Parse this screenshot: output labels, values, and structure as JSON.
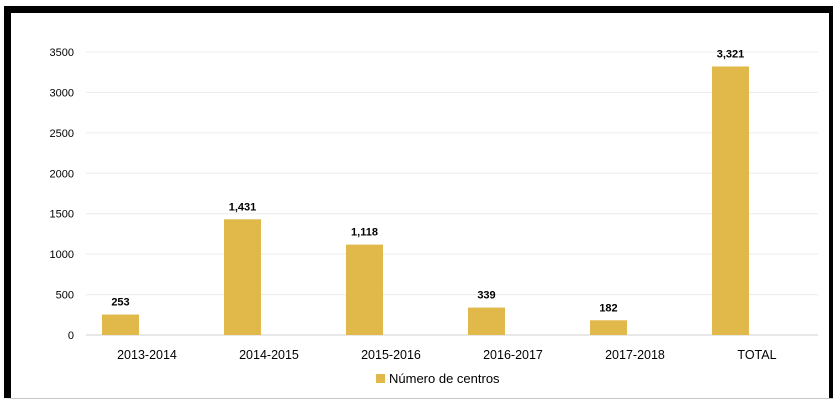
{
  "chart_data": {
    "type": "bar",
    "categories": [
      "2013-2014",
      "2014-2015",
      "2015-2016",
      "2016-2017",
      "2017-2018",
      "TOTAL"
    ],
    "series": [
      {
        "name": "Número de centros",
        "values": [
          253,
          1431,
          1118,
          339,
          182,
          3321
        ],
        "data_labels": [
          "253",
          "1,431",
          "1,118",
          "339",
          "182",
          "3,321"
        ],
        "color": "#e1b94b"
      }
    ],
    "yticks": [
      "0",
      "500",
      "1000",
      "1500",
      "2000",
      "2500",
      "3000",
      "3500"
    ],
    "ylim": [
      0,
      3500
    ],
    "grid": true,
    "legend_position": "bottom"
  }
}
